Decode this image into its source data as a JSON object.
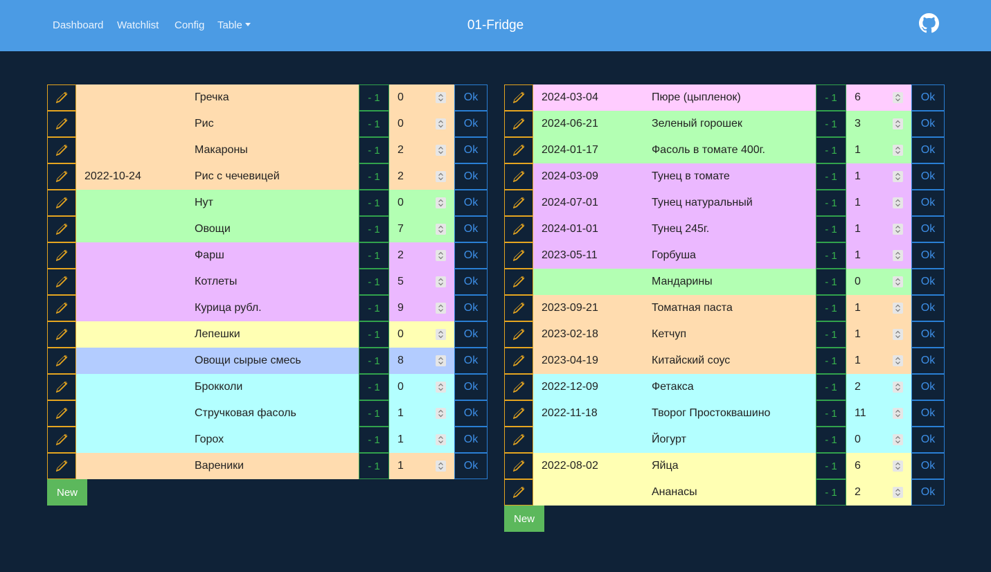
{
  "nav": {
    "links": [
      "Dashboard",
      "Watchlist",
      "Config",
      "Table"
    ],
    "title": "01-Fridge"
  },
  "icons": {
    "edit": "pencil-icon",
    "github": "github-icon",
    "spinner": "chevron-up-down-icon"
  },
  "colors": {
    "navbar": "#4b9be4",
    "background": "#0f2237",
    "peach": "#ffdcaf",
    "green": "#b3ffb3",
    "purple": "#ebb8ff",
    "pink": "#ffccff",
    "yellow": "#ffffb3",
    "blue": "#b3ccff",
    "cyan": "#b3ffff"
  },
  "labels": {
    "minus": "- 1",
    "ok": "Ok",
    "new": "New"
  },
  "left": [
    {
      "date": "",
      "name": "Гречка",
      "qty": "0",
      "color": "#ffdcaf"
    },
    {
      "date": "",
      "name": "Рис",
      "qty": "0",
      "color": "#ffdcaf"
    },
    {
      "date": "",
      "name": "Макароны",
      "qty": "2",
      "color": "#ffdcaf"
    },
    {
      "date": "2022-10-24",
      "name": "Рис с чечевицей",
      "qty": "2",
      "color": "#ffdcaf"
    },
    {
      "date": "",
      "name": "Нут",
      "qty": "0",
      "color": "#b3ffb3"
    },
    {
      "date": "",
      "name": "Овощи",
      "qty": "7",
      "color": "#b3ffb3"
    },
    {
      "date": "",
      "name": "Фарш",
      "qty": "2",
      "color": "#ebb8ff"
    },
    {
      "date": "",
      "name": "Котлеты",
      "qty": "5",
      "color": "#ebb8ff"
    },
    {
      "date": "",
      "name": "Курица рубл.",
      "qty": "9",
      "color": "#ebb8ff"
    },
    {
      "date": "",
      "name": "Лепешки",
      "qty": "0",
      "color": "#ffffb3"
    },
    {
      "date": "",
      "name": "Овощи сырые смесь",
      "qty": "8",
      "color": "#b3ccff"
    },
    {
      "date": "",
      "name": "Брокколи",
      "qty": "0",
      "color": "#b3ffff"
    },
    {
      "date": "",
      "name": "Стручковая фасоль",
      "qty": "1",
      "color": "#b3ffff"
    },
    {
      "date": "",
      "name": "Горох",
      "qty": "1",
      "color": "#b3ffff"
    },
    {
      "date": "",
      "name": "Вареники",
      "qty": "1",
      "color": "#ffdcaf"
    }
  ],
  "right": [
    {
      "date": "2024-03-04",
      "name": "Пюре (цыпленок)",
      "qty": "6",
      "color": "#ffccff"
    },
    {
      "date": "2024-06-21",
      "name": "Зеленый горошек",
      "qty": "3",
      "color": "#b3ffb3"
    },
    {
      "date": "2024-01-17",
      "name": "Фасоль в томате 400г.",
      "qty": "1",
      "color": "#b3ffb3"
    },
    {
      "date": "2024-03-09",
      "name": "Тунец в томате",
      "qty": "1",
      "color": "#ebb8ff"
    },
    {
      "date": "2024-07-01",
      "name": "Тунец натуральный",
      "qty": "1",
      "color": "#ebb8ff"
    },
    {
      "date": "2024-01-01",
      "name": "Тунец 245г.",
      "qty": "1",
      "color": "#ebb8ff"
    },
    {
      "date": "2023-05-11",
      "name": "Горбуша",
      "qty": "1",
      "color": "#ebb8ff"
    },
    {
      "date": "",
      "name": "Мандарины",
      "qty": "0",
      "color": "#b3ffb3"
    },
    {
      "date": "2023-09-21",
      "name": "Томатная паста",
      "qty": "1",
      "color": "#ffdcaf"
    },
    {
      "date": "2023-02-18",
      "name": "Кетчуп",
      "qty": "1",
      "color": "#ffdcaf"
    },
    {
      "date": "2023-04-19",
      "name": "Китайский соус",
      "qty": "1",
      "color": "#ffdcaf"
    },
    {
      "date": "2022-12-09",
      "name": "Фетакса",
      "qty": "2",
      "color": "#b3ffff"
    },
    {
      "date": "2022-11-18",
      "name": "Творог Простоквашино",
      "qty": "11",
      "color": "#b3ffff"
    },
    {
      "date": "",
      "name": "Йогурт",
      "qty": "0",
      "color": "#b3ffff"
    },
    {
      "date": "2022-08-02",
      "name": "Яйца",
      "qty": "6",
      "color": "#ffffb3"
    },
    {
      "date": "",
      "name": "Ананасы",
      "qty": "2",
      "color": "#ffffb3"
    }
  ]
}
